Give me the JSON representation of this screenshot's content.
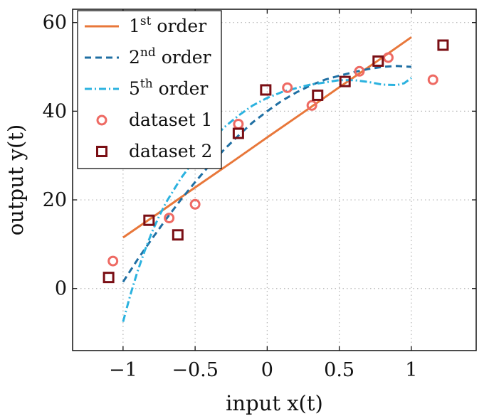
{
  "chart_data": {
    "type": "line",
    "title": "",
    "xlabel": "input x(t)",
    "ylabel": "output y(t)",
    "xlim": [
      -1.35,
      1.45
    ],
    "ylim": [
      -14,
      63
    ],
    "xticks": [
      {
        "value": -1,
        "label": "−1"
      },
      {
        "value": -0.5,
        "label": "−0.5"
      },
      {
        "value": 0,
        "label": "0"
      },
      {
        "value": 0.5,
        "label": "0.5"
      },
      {
        "value": 1,
        "label": "1"
      }
    ],
    "yticks": [
      {
        "value": 0,
        "label": "0"
      },
      {
        "value": 20,
        "label": "20"
      },
      {
        "value": 40,
        "label": "40"
      },
      {
        "value": 60,
        "label": "60"
      }
    ],
    "grid": true,
    "legend_position": "top-left",
    "series": [
      {
        "name": "1st order",
        "kind": "line",
        "style": "solid",
        "color": "#e8773a",
        "x": [
          -1,
          -0.75,
          -0.5,
          -0.25,
          0,
          0.25,
          0.5,
          0.75,
          1
        ],
        "y": [
          11.5,
          17.1,
          22.8,
          28.4,
          34.1,
          39.7,
          45.4,
          51.0,
          56.7
        ]
      },
      {
        "name": "2nd order",
        "kind": "line",
        "style": "dashed",
        "color": "#1f6fa3",
        "x": [
          -1,
          -0.9,
          -0.8,
          -0.7,
          -0.6,
          -0.5,
          -0.4,
          -0.3,
          -0.2,
          -0.1,
          0,
          0.1,
          0.2,
          0.3,
          0.4,
          0.5,
          0.6,
          0.7,
          0.8,
          0.9,
          1
        ],
        "y": [
          1.5,
          6.5,
          11.2,
          15.7,
          20.0,
          24.0,
          27.8,
          31.3,
          34.5,
          37.5,
          40.0,
          42.3,
          44.2,
          45.8,
          47.1,
          48.0,
          48.8,
          49.5,
          50.0,
          50.2,
          50.0
        ]
      },
      {
        "name": "5th order",
        "kind": "line",
        "style": "dash-dot",
        "color": "#2bb2df",
        "x": [
          -1,
          -0.95,
          -0.9,
          -0.85,
          -0.8,
          -0.75,
          -0.7,
          -0.6,
          -0.5,
          -0.4,
          -0.3,
          -0.2,
          -0.1,
          0,
          0.1,
          0.2,
          0.3,
          0.4,
          0.5,
          0.6,
          0.7,
          0.8,
          0.9,
          0.95,
          1
        ],
        "y": [
          -7.5,
          -1.5,
          3.8,
          8.5,
          12.7,
          16.3,
          19.5,
          24.8,
          29.2,
          33.0,
          36.3,
          39.0,
          41.3,
          43.0,
          44.3,
          45.2,
          46.0,
          46.5,
          47.0,
          47.0,
          46.6,
          46.0,
          45.9,
          46.3,
          47.5
        ]
      },
      {
        "name": "dataset 1",
        "kind": "scatter",
        "marker": "circle",
        "color": "#ee6a63",
        "x": [
          -1.07,
          -0.68,
          -0.5,
          -0.2,
          0.14,
          0.31,
          0.64,
          0.84,
          1.15
        ],
        "y": [
          6.2,
          15.9,
          19.0,
          37.1,
          45.3,
          41.3,
          49.0,
          52.1,
          47.1
        ]
      },
      {
        "name": "dataset 2",
        "kind": "scatter",
        "marker": "square",
        "color": "#7a0e14",
        "x": [
          -1.1,
          -0.82,
          -0.62,
          -0.2,
          -0.01,
          0.35,
          0.54,
          0.77,
          1.22
        ],
        "y": [
          2.5,
          15.4,
          12.1,
          35.0,
          44.8,
          43.6,
          46.7,
          51.3,
          54.9
        ]
      }
    ]
  }
}
